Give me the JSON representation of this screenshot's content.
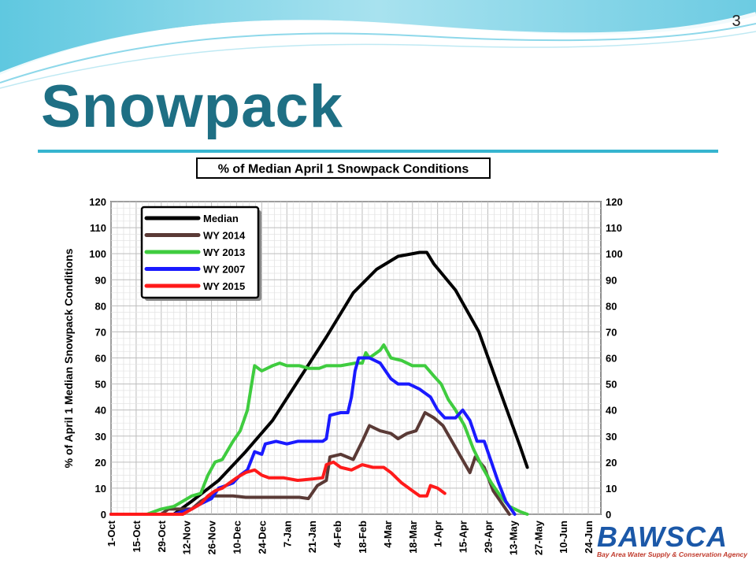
{
  "slide": {
    "number": "3",
    "title": "Snowpack",
    "logo": {
      "name": "BAWSCA",
      "tagline": "Bay Area Water Supply & Conservation Agency",
      "color": "#1b58a8",
      "tagline_color": "#c0392b"
    },
    "accent_color": "#36b4cf",
    "title_color": "#1e6f84"
  },
  "chart_data": {
    "type": "line",
    "title": "% of Median April 1 Snowpack Conditions",
    "ylabel": "% of April 1 Median Snowpack Conditions",
    "xlabel": "",
    "ylim": [
      0,
      120
    ],
    "y_ticks": [
      0,
      10,
      20,
      30,
      40,
      50,
      60,
      70,
      80,
      90,
      100,
      110,
      120
    ],
    "right_axis_duplicate": true,
    "x_ticks": [
      "1-Oct",
      "15-Oct",
      "29-Oct",
      "12-Nov",
      "26-Nov",
      "10-Dec",
      "24-Dec",
      "7-Jan",
      "21-Jan",
      "4-Feb",
      "18-Feb",
      "4-Mar",
      "18-Mar",
      "1-Apr",
      "15-Apr",
      "29-Apr",
      "13-May",
      "27-May",
      "10-Jun",
      "24-Jun"
    ],
    "x_unit": "days since 1-Oct",
    "xlim": [
      0,
      273
    ],
    "grid": true,
    "legend_position": "top-left",
    "series": [
      {
        "name": "Median",
        "color": "#000000",
        "points": [
          [
            35,
            0
          ],
          [
            45,
            5
          ],
          [
            60,
            13
          ],
          [
            75,
            24
          ],
          [
            90,
            36
          ],
          [
            105,
            52
          ],
          [
            120,
            68
          ],
          [
            135,
            85
          ],
          [
            148,
            94
          ],
          [
            160,
            99
          ],
          [
            172,
            100.5
          ],
          [
            176,
            100.5
          ],
          [
            180,
            96
          ],
          [
            192,
            86
          ],
          [
            205,
            70
          ],
          [
            218,
            45
          ],
          [
            228,
            26
          ],
          [
            232,
            18
          ]
        ]
      },
      {
        "name": "WY 2014",
        "color": "#5a3a36",
        "points": [
          [
            0,
            0
          ],
          [
            28,
            0
          ],
          [
            32,
            2
          ],
          [
            45,
            2
          ],
          [
            50,
            5
          ],
          [
            55,
            7
          ],
          [
            60,
            7
          ],
          [
            68,
            7
          ],
          [
            75,
            6.5
          ],
          [
            90,
            6.5
          ],
          [
            105,
            6.5
          ],
          [
            110,
            6
          ],
          [
            115,
            11
          ],
          [
            120,
            13
          ],
          [
            122,
            22
          ],
          [
            128,
            23
          ],
          [
            135,
            21
          ],
          [
            140,
            28
          ],
          [
            144,
            34
          ],
          [
            150,
            32
          ],
          [
            156,
            31
          ],
          [
            160,
            29
          ],
          [
            165,
            31
          ],
          [
            170,
            32
          ],
          [
            175,
            39
          ],
          [
            180,
            37
          ],
          [
            185,
            34
          ],
          [
            190,
            28
          ],
          [
            195,
            22
          ],
          [
            200,
            16
          ],
          [
            203,
            22
          ],
          [
            208,
            18
          ],
          [
            213,
            9
          ],
          [
            218,
            4
          ],
          [
            222,
            0
          ]
        ]
      },
      {
        "name": "WY 2013",
        "color": "#3fcc3f",
        "points": [
          [
            0,
            0
          ],
          [
            20,
            0
          ],
          [
            28,
            2
          ],
          [
            35,
            3
          ],
          [
            40,
            5
          ],
          [
            45,
            7
          ],
          [
            50,
            8
          ],
          [
            54,
            15
          ],
          [
            58,
            20
          ],
          [
            62,
            21
          ],
          [
            68,
            28
          ],
          [
            72,
            32
          ],
          [
            76,
            40
          ],
          [
            80,
            57
          ],
          [
            84,
            55
          ],
          [
            90,
            57
          ],
          [
            94,
            58
          ],
          [
            98,
            57
          ],
          [
            105,
            57
          ],
          [
            110,
            56
          ],
          [
            116,
            56
          ],
          [
            120,
            57
          ],
          [
            128,
            57
          ],
          [
            136,
            58
          ],
          [
            140,
            58
          ],
          [
            142,
            62
          ],
          [
            144,
            60
          ],
          [
            150,
            63
          ],
          [
            152,
            65
          ],
          [
            156,
            60
          ],
          [
            162,
            59
          ],
          [
            168,
            57
          ],
          [
            175,
            57
          ],
          [
            180,
            53
          ],
          [
            184,
            50
          ],
          [
            188,
            44
          ],
          [
            192,
            40
          ],
          [
            197,
            34
          ],
          [
            202,
            25
          ],
          [
            207,
            18
          ],
          [
            212,
            12
          ],
          [
            217,
            7
          ],
          [
            222,
            3
          ],
          [
            228,
            1
          ],
          [
            232,
            0
          ]
        ]
      },
      {
        "name": "WY 2007",
        "color": "#1a1aff",
        "points": [
          [
            0,
            0
          ],
          [
            35,
            0
          ],
          [
            40,
            1
          ],
          [
            45,
            2
          ],
          [
            50,
            4
          ],
          [
            56,
            6
          ],
          [
            60,
            10
          ],
          [
            64,
            11
          ],
          [
            68,
            12
          ],
          [
            72,
            15
          ],
          [
            76,
            17
          ],
          [
            80,
            24
          ],
          [
            84,
            23
          ],
          [
            86,
            27
          ],
          [
            92,
            28
          ],
          [
            98,
            27
          ],
          [
            104,
            28
          ],
          [
            110,
            28
          ],
          [
            118,
            28
          ],
          [
            120,
            29
          ],
          [
            122,
            38
          ],
          [
            128,
            39
          ],
          [
            132,
            39
          ],
          [
            134,
            45
          ],
          [
            136,
            55
          ],
          [
            138,
            60
          ],
          [
            144,
            60
          ],
          [
            150,
            58
          ],
          [
            156,
            52
          ],
          [
            160,
            50
          ],
          [
            166,
            50
          ],
          [
            172,
            48
          ],
          [
            178,
            45
          ],
          [
            182,
            40
          ],
          [
            186,
            37
          ],
          [
            192,
            37
          ],
          [
            196,
            40
          ],
          [
            200,
            36
          ],
          [
            204,
            28
          ],
          [
            208,
            28
          ],
          [
            212,
            20
          ],
          [
            216,
            12
          ],
          [
            220,
            5
          ],
          [
            225,
            0
          ]
        ]
      },
      {
        "name": "WY 2015",
        "color": "#ff1a1a",
        "points": [
          [
            0,
            0
          ],
          [
            40,
            0
          ],
          [
            45,
            2
          ],
          [
            50,
            4
          ],
          [
            54,
            7
          ],
          [
            58,
            9
          ],
          [
            62,
            10
          ],
          [
            66,
            12
          ],
          [
            70,
            14
          ],
          [
            75,
            16
          ],
          [
            80,
            17
          ],
          [
            84,
            15
          ],
          [
            88,
            14
          ],
          [
            96,
            14
          ],
          [
            104,
            13
          ],
          [
            112,
            13.5
          ],
          [
            118,
            14
          ],
          [
            120,
            19
          ],
          [
            124,
            20
          ],
          [
            128,
            18
          ],
          [
            134,
            17
          ],
          [
            140,
            19
          ],
          [
            146,
            18
          ],
          [
            152,
            18
          ],
          [
            156,
            16
          ],
          [
            162,
            12
          ],
          [
            168,
            9
          ],
          [
            172,
            7
          ],
          [
            176,
            7
          ],
          [
            178,
            11
          ],
          [
            182,
            10
          ],
          [
            186,
            8
          ]
        ]
      }
    ]
  }
}
